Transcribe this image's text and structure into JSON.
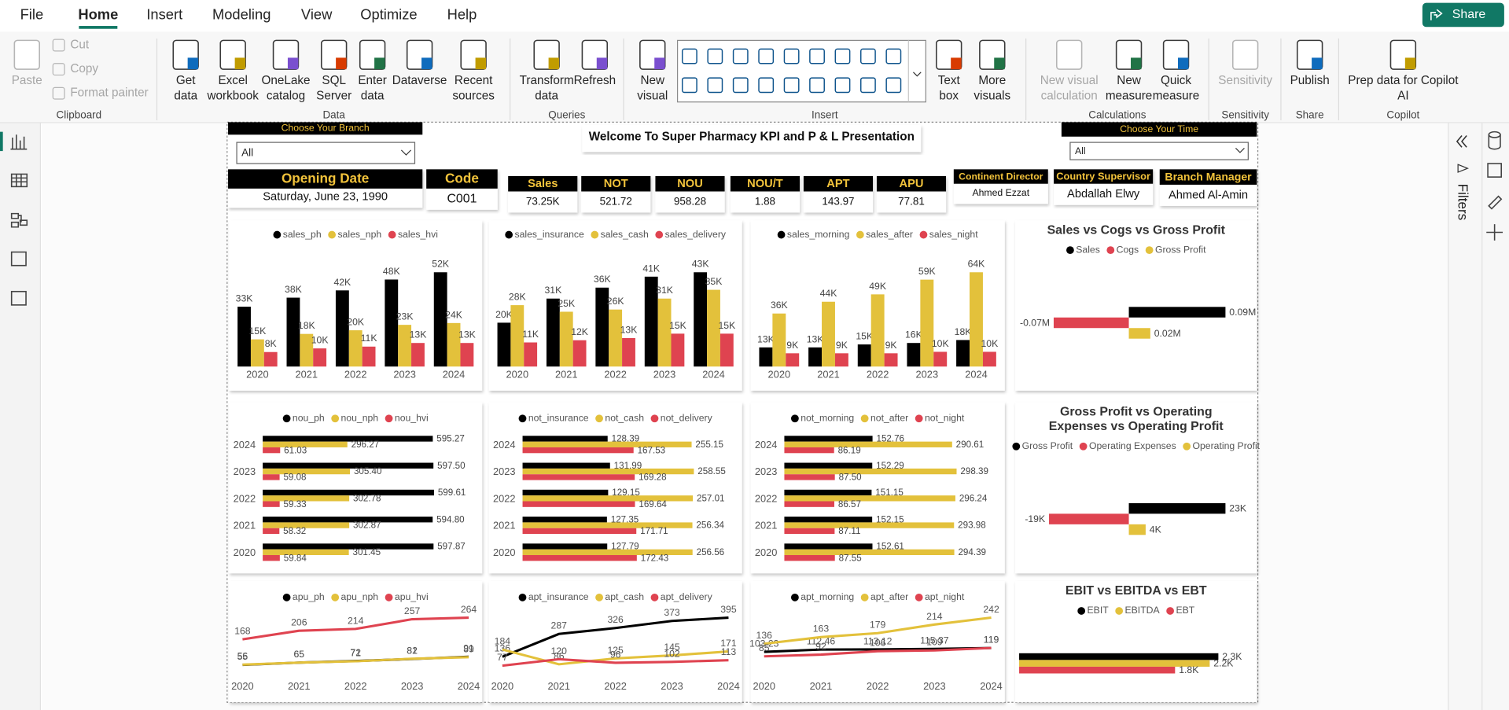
{
  "menu": {
    "tabs": [
      "File",
      "Home",
      "Insert",
      "Modeling",
      "View",
      "Optimize",
      "Help"
    ],
    "share": "Share"
  },
  "ribbon": {
    "groups": [
      {
        "name": "Clipboard",
        "buttons": [
          {
            "lines": [
              "Paste"
            ]
          },
          {
            "lines": [
              "Cut"
            ]
          },
          {
            "lines": [
              "Copy"
            ]
          },
          {
            "lines": [
              "Format painter"
            ]
          }
        ]
      },
      {
        "name": "Data",
        "buttons": [
          {
            "lines": [
              "Get",
              "data"
            ]
          },
          {
            "lines": [
              "Excel",
              "workbook"
            ]
          },
          {
            "lines": [
              "OneLake",
              "catalog"
            ]
          },
          {
            "lines": [
              "SQL",
              "Server"
            ]
          },
          {
            "lines": [
              "Enter",
              "data"
            ]
          },
          {
            "lines": [
              "Dataverse"
            ]
          },
          {
            "lines": [
              "Recent",
              "sources"
            ]
          }
        ]
      },
      {
        "name": "Queries",
        "buttons": [
          {
            "lines": [
              "Transform",
              "data"
            ]
          },
          {
            "lines": [
              "Refresh"
            ]
          }
        ]
      },
      {
        "name": "Insert",
        "buttons": [
          {
            "lines": [
              "New",
              "visual"
            ]
          },
          {
            "lines": [
              "Text",
              "box"
            ]
          },
          {
            "lines": [
              "More",
              "visuals"
            ]
          }
        ]
      },
      {
        "name": "Calculations",
        "buttons": [
          {
            "lines": [
              "New visual",
              "calculation"
            ]
          },
          {
            "lines": [
              "New",
              "measure"
            ]
          },
          {
            "lines": [
              "Quick",
              "measure"
            ]
          }
        ]
      },
      {
        "name": "Sensitivity",
        "buttons": [
          {
            "lines": [
              "Sensitivity"
            ]
          }
        ]
      },
      {
        "name": "Share",
        "buttons": [
          {
            "lines": [
              "Publish"
            ]
          }
        ]
      },
      {
        "name": "Copilot",
        "buttons": [
          {
            "lines": [
              "Prep data for Copilot",
              "AI"
            ]
          }
        ]
      }
    ]
  },
  "filters_pane": {
    "title": "Filters"
  },
  "report": {
    "branch_slicer": {
      "title": "Choose Your Branch",
      "value": "All"
    },
    "title": "Welcome To Super Pharmacy KPI  and P & L Presentation",
    "time_slicer": {
      "title": "Choose Your Time",
      "value": "All"
    },
    "cards": [
      {
        "label": "Opening Date",
        "value": "Saturday, June 23, 1990"
      },
      {
        "label": "Code",
        "value": "C001"
      },
      {
        "label": "Sales",
        "value": "73.25K"
      },
      {
        "label": "NOT",
        "value": "521.72"
      },
      {
        "label": "NOU",
        "value": "958.28"
      },
      {
        "label": "NOU/T",
        "value": "1.88"
      },
      {
        "label": "APT",
        "value": "143.97"
      },
      {
        "label": "APU",
        "value": "77.81"
      },
      {
        "label": "Continent Director",
        "value": "Ahmed Ezzat"
      },
      {
        "label": "Country Supervisor",
        "value": "Abdallah Elwy"
      },
      {
        "label": "Branch Manager",
        "value": "Ahmed Al-Amin"
      }
    ],
    "charts": [
      {
        "type": "column",
        "categories": [
          "2020",
          "2021",
          "2022",
          "2023",
          "2024"
        ],
        "series": [
          {
            "name": "sales_ph",
            "color": "#000000",
            "values": [
              33000,
              38000,
              42000,
              48000,
              52000
            ],
            "value_labels": [
              "33K",
              "38K",
              "42K",
              "48K",
              "52K"
            ]
          },
          {
            "name": "sales_nph",
            "color": "#e3c13b",
            "values": [
              15000,
              18000,
              20000,
              23000,
              24000
            ],
            "value_labels": [
              "15K",
              "18K",
              "20K",
              "23K",
              "24K"
            ]
          },
          {
            "name": "sales_hvi",
            "color": "#df4350",
            "values": [
              8000,
              10000,
              11000,
              13000,
              13000
            ],
            "value_labels": [
              "8K",
              "10K",
              "11K",
              "13K",
              "13K"
            ]
          }
        ]
      },
      {
        "type": "column",
        "categories": [
          "2020",
          "2021",
          "2022",
          "2023",
          "2024"
        ],
        "series": [
          {
            "name": "sales_insurance",
            "color": "#000000",
            "values": [
              20000,
              31000,
              36000,
              41000,
              43000
            ],
            "value_labels": [
              "20K",
              "31K",
              "36K",
              "41K",
              "43K"
            ]
          },
          {
            "name": "sales_cash",
            "color": "#e3c13b",
            "values": [
              28000,
              25000,
              26000,
              31000,
              35000
            ],
            "value_labels": [
              "28K",
              "25K",
              "26K",
              "31K",
              "35K"
            ]
          },
          {
            "name": "sales_delivery",
            "color": "#df4350",
            "values": [
              11000,
              12000,
              13000,
              15000,
              15000
            ],
            "value_labels": [
              "11K",
              "12K",
              "13K",
              "15K",
              "15K"
            ]
          }
        ]
      },
      {
        "type": "column",
        "categories": [
          "2020",
          "2021",
          "2022",
          "2023",
          "2024"
        ],
        "series": [
          {
            "name": "sales_morning",
            "color": "#000000",
            "values": [
              13000,
              13000,
              15000,
              16000,
              18000
            ],
            "value_labels": [
              "13K",
              "13K",
              "15K",
              "16K",
              "18K"
            ]
          },
          {
            "name": "sales_after",
            "color": "#e3c13b",
            "values": [
              36000,
              44000,
              49000,
              59000,
              64000
            ],
            "value_labels": [
              "36K",
              "44K",
              "49K",
              "59K",
              "64K"
            ]
          },
          {
            "name": "sales_night",
            "color": "#df4350",
            "values": [
              9000,
              9000,
              9000,
              10000,
              10000
            ],
            "value_labels": [
              "9K",
              "9K",
              "9K",
              "10K",
              "10K"
            ]
          }
        ]
      },
      {
        "type": "bar",
        "title": "Sales vs Cogs vs Gross Profit",
        "series": [
          {
            "name": "Sales",
            "color": "#000000",
            "values": [
              90000
            ],
            "value_labels": [
              "0.09M"
            ]
          },
          {
            "name": "Cogs",
            "color": "#df4350",
            "values": [
              -70000
            ],
            "value_labels": [
              "-0.07M"
            ]
          },
          {
            "name": "Gross Profit",
            "color": "#e3c13b",
            "values": [
              20000
            ],
            "value_labels": [
              "0.02M"
            ]
          }
        ]
      },
      {
        "type": "bar",
        "categories": [
          "2024",
          "2023",
          "2022",
          "2021",
          "2020"
        ],
        "series": [
          {
            "name": "nou_ph",
            "color": "#000000",
            "values": [
              595.27,
              597.5,
              599.61,
              594.8,
              597.87
            ],
            "value_labels": [
              "595.27",
              "597.50",
              "599.61",
              "594.80",
              "597.87"
            ]
          },
          {
            "name": "nou_nph",
            "color": "#e3c13b",
            "values": [
              296.27,
              305.4,
              302.78,
              302.87,
              301.45
            ],
            "value_labels": [
              "296.27",
              "305.40",
              "302.78",
              "302.87",
              "301.45"
            ]
          },
          {
            "name": "nou_hvi",
            "color": "#df4350",
            "values": [
              61.03,
              59.08,
              59.33,
              58.32,
              59.84
            ],
            "value_labels": [
              "61.03",
              "59.08",
              "59.33",
              "58.32",
              "59.84"
            ]
          }
        ]
      },
      {
        "type": "bar",
        "categories": [
          "2024",
          "2023",
          "2022",
          "2021",
          "2020"
        ],
        "series": [
          {
            "name": "not_insurance",
            "color": "#000000",
            "values": [
              128.39,
              131.99,
              129.15,
              127.35,
              127.79
            ],
            "value_labels": [
              "128.39",
              "131.99",
              "129.15",
              "127.35",
              "127.79"
            ]
          },
          {
            "name": "not_cash",
            "color": "#e3c13b",
            "values": [
              255.15,
              258.55,
              257.01,
              256.34,
              256.56
            ],
            "value_labels": [
              "255.15",
              "258.55",
              "257.01",
              "256.34",
              "256.56"
            ]
          },
          {
            "name": "not_delivery",
            "color": "#df4350",
            "values": [
              167.53,
              169.28,
              169.64,
              171.71,
              172.43
            ],
            "value_labels": [
              "167.53",
              "169.28",
              "169.64",
              "171.71",
              "172.43"
            ]
          }
        ]
      },
      {
        "type": "bar",
        "categories": [
          "2024",
          "2023",
          "2022",
          "2021",
          "2020"
        ],
        "series": [
          {
            "name": "not_morning",
            "color": "#000000",
            "values": [
              152.76,
              152.29,
              151.15,
              152.15,
              152.61
            ],
            "value_labels": [
              "152.76",
              "152.29",
              "151.15",
              "152.15",
              "152.61"
            ]
          },
          {
            "name": "not_after",
            "color": "#e3c13b",
            "values": [
              290.61,
              298.39,
              296.24,
              293.98,
              294.39
            ],
            "value_labels": [
              "290.61",
              "298.39",
              "296.24",
              "293.98",
              "294.39"
            ]
          },
          {
            "name": "not_night",
            "color": "#df4350",
            "values": [
              86.19,
              87.5,
              86.57,
              87.11,
              87.55
            ],
            "value_labels": [
              "86.19",
              "87.50",
              "86.57",
              "87.11",
              "87.55"
            ]
          }
        ]
      },
      {
        "type": "bar",
        "title": "Gross Profit vs Operating Expenses vs Operating Profit",
        "series": [
          {
            "name": "Gross Profit",
            "color": "#000000",
            "values": [
              23000
            ],
            "value_labels": [
              "23K"
            ]
          },
          {
            "name": "Operating Expenses",
            "color": "#df4350",
            "values": [
              -19000
            ],
            "value_labels": [
              "-19K"
            ]
          },
          {
            "name": "Operating Profit",
            "color": "#e3c13b",
            "values": [
              4000
            ],
            "value_labels": [
              "4K"
            ]
          }
        ]
      },
      {
        "type": "line",
        "categories": [
          "2020",
          "2021",
          "2022",
          "2023",
          "2024"
        ],
        "series": [
          {
            "name": "apu_ph",
            "color": "#000000",
            "values": [
              55,
              65,
              72,
              81,
              91
            ]
          },
          {
            "name": "apu_nph",
            "color": "#e3c13b",
            "values": [
              56,
              65,
              71,
              82,
              89
            ]
          },
          {
            "name": "apu_hvi",
            "color": "#df4350",
            "values": [
              168,
              206,
              214,
              257,
              264
            ]
          }
        ]
      },
      {
        "type": "line",
        "categories": [
          "2020",
          "2021",
          "2022",
          "2023",
          "2024"
        ],
        "series": [
          {
            "name": "apt_insurance",
            "color": "#000000",
            "values": [
              136,
              287,
              326,
              373,
              395
            ]
          },
          {
            "name": "apt_cash",
            "color": "#e3c13b",
            "values": [
              184,
              86,
              125,
              145,
              171
            ]
          },
          {
            "name": "apt_delivery",
            "color": "#df4350",
            "values": [
              77,
              120,
              96,
              102,
              113
            ]
          }
        ]
      },
      {
        "type": "line",
        "categories": [
          "2020",
          "2021",
          "2022",
          "2023",
          "2024"
        ],
        "series": [
          {
            "name": "apt_morning",
            "color": "#000000",
            "values": [
              103.23,
              112.46,
              113.12,
              115.37,
              119
            ]
          },
          {
            "name": "apt_after",
            "color": "#e3c13b",
            "values": [
              136,
              163,
              179,
              214,
              242
            ]
          },
          {
            "name": "apt_night",
            "color": "#df4350",
            "values": [
              85,
              92,
              106,
              109,
              119
            ]
          }
        ]
      },
      {
        "type": "bar",
        "title": "EBIT vs EBITDA vs EBT",
        "series": [
          {
            "name": "EBIT",
            "color": "#000000",
            "values": [
              2300
            ],
            "value_labels": [
              "2.3K"
            ]
          },
          {
            "name": "EBITDA",
            "color": "#e3c13b",
            "values": [
              2200
            ],
            "value_labels": [
              "2.2K"
            ]
          },
          {
            "name": "EBT",
            "color": "#df4350",
            "values": [
              1800
            ],
            "value_labels": [
              "1.8K"
            ]
          }
        ]
      }
    ]
  }
}
